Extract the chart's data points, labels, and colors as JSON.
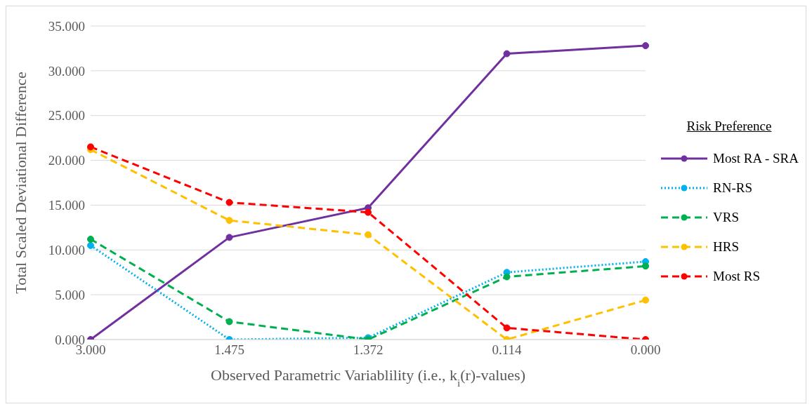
{
  "chart_data": {
    "type": "line",
    "xlabel": "Observed Parametric Variablility (i.e., k$_{i}$(r)-values)",
    "ylabel": "Total Scaled Deviational Difference",
    "legend_title": "Risk Preference",
    "legend": "right",
    "grid": "y",
    "marker": "circle",
    "categories": [
      "3.000",
      "1.475",
      "1.372",
      "0.114",
      "0.000"
    ],
    "ylim": [
      0,
      35
    ],
    "yticks": [
      {
        "value": 0,
        "label": "0.000"
      },
      {
        "value": 5,
        "label": "5.000"
      },
      {
        "value": 10,
        "label": "10.000"
      },
      {
        "value": 15,
        "label": "15.000"
      },
      {
        "value": 20,
        "label": "20.000"
      },
      {
        "value": 25,
        "label": "25.000"
      },
      {
        "value": 30,
        "label": "30.000"
      },
      {
        "value": 35,
        "label": "35.000"
      }
    ],
    "series": [
      {
        "name": "Most RA - SRA",
        "color": "#7030a0",
        "line_style": "solid",
        "values": [
          0,
          11.4,
          14.7,
          31.9,
          32.8
        ]
      },
      {
        "name": "RN-RS",
        "color": "#00b0f0",
        "line_style": "dotted",
        "values": [
          10.5,
          0,
          0.2,
          7.5,
          8.7
        ]
      },
      {
        "name": "VRS",
        "color": "#00b050",
        "line_style": "dashed",
        "values": [
          11.2,
          2.0,
          0,
          7.0,
          8.2
        ]
      },
      {
        "name": "HRS",
        "color": "#ffc000",
        "line_style": "dashed",
        "values": [
          21.2,
          13.3,
          11.7,
          0,
          4.4
        ]
      },
      {
        "name": "Most RS",
        "color": "#ff0000",
        "line_style": "dashed",
        "values": [
          21.5,
          15.3,
          14.2,
          1.3,
          0
        ]
      }
    ]
  }
}
